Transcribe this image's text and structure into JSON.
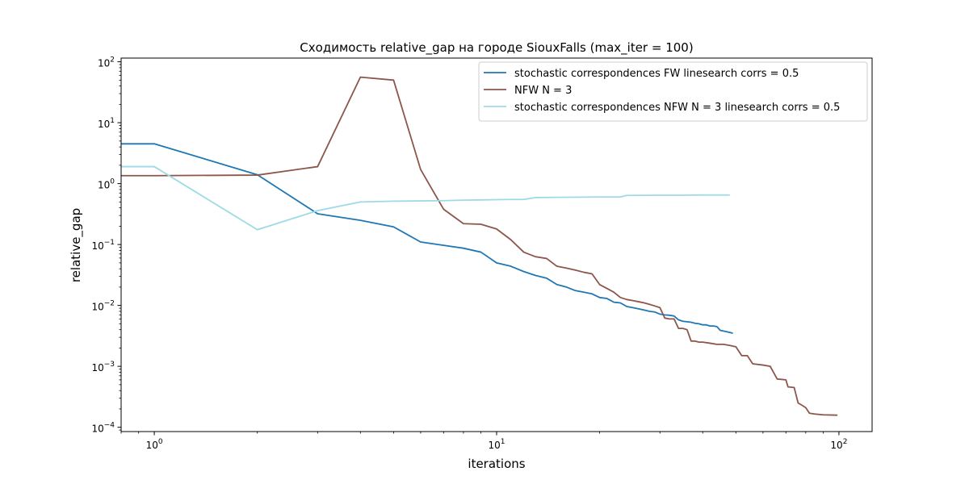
{
  "chart_data": {
    "type": "line",
    "title": "Сходимость relative_gap на городе SiouxFalls  (max_iter = 100)",
    "xlabel": "iterations",
    "ylabel": "relative_gap",
    "xscale": "log",
    "yscale": "log",
    "xlim": [
      0.8,
      125
    ],
    "ylim": [
      8.5e-05,
      115
    ],
    "xticks": [
      {
        "base": "10",
        "exp": "0",
        "value": 1
      },
      {
        "base": "10",
        "exp": "1",
        "value": 10
      },
      {
        "base": "10",
        "exp": "2",
        "value": 100
      }
    ],
    "yticks": [
      {
        "base": "10",
        "exp": "−4",
        "value": 0.0001
      },
      {
        "base": "10",
        "exp": "−3",
        "value": 0.001
      },
      {
        "base": "10",
        "exp": "−2",
        "value": 0.01
      },
      {
        "base": "10",
        "exp": "−1",
        "value": 0.1
      },
      {
        "base": "10",
        "exp": "0",
        "value": 1
      },
      {
        "base": "10",
        "exp": "1",
        "value": 10
      },
      {
        "base": "10",
        "exp": "2",
        "value": 100
      }
    ],
    "grid": false,
    "legend_position": "top-right",
    "series": [
      {
        "name": "stochastic correspondences FW linesearch corrs = 0.5",
        "color": "#1f77b4",
        "points": [
          [
            0,
            4.5
          ],
          [
            1,
            4.5
          ],
          [
            2,
            1.4
          ],
          [
            3,
            0.32
          ],
          [
            4,
            0.25
          ],
          [
            5,
            0.195
          ],
          [
            6,
            0.11
          ],
          [
            7,
            0.097
          ],
          [
            8,
            0.087
          ],
          [
            9,
            0.075
          ],
          [
            10,
            0.05
          ],
          [
            11,
            0.044
          ],
          [
            12,
            0.036
          ],
          [
            13,
            0.031
          ],
          [
            14,
            0.028
          ],
          [
            15,
            0.022
          ],
          [
            16,
            0.02
          ],
          [
            17,
            0.0175
          ],
          [
            18,
            0.0165
          ],
          [
            19,
            0.0155
          ],
          [
            20,
            0.0135
          ],
          [
            21,
            0.013
          ],
          [
            22,
            0.0113
          ],
          [
            23,
            0.011
          ],
          [
            24,
            0.0096
          ],
          [
            25,
            0.0092
          ],
          [
            26,
            0.0088
          ],
          [
            27,
            0.0084
          ],
          [
            28,
            0.008
          ],
          [
            29,
            0.0078
          ],
          [
            30,
            0.0072
          ],
          [
            31,
            0.007
          ],
          [
            32,
            0.0069
          ],
          [
            33,
            0.0067
          ],
          [
            34,
            0.0058
          ],
          [
            35,
            0.0055
          ],
          [
            36,
            0.0054
          ],
          [
            37,
            0.0053
          ],
          [
            38,
            0.0051
          ],
          [
            39,
            0.005
          ],
          [
            40,
            0.0048
          ],
          [
            41,
            0.0048
          ],
          [
            42,
            0.0046
          ],
          [
            43,
            0.0046
          ],
          [
            44,
            0.0045
          ],
          [
            45,
            0.0039
          ],
          [
            46,
            0.0038
          ],
          [
            47,
            0.0037
          ],
          [
            48,
            0.0036
          ],
          [
            49,
            0.0035
          ]
        ]
      },
      {
        "name": "NFW N = 3",
        "color": "#8c564b",
        "points": [
          [
            0,
            1.35
          ],
          [
            1,
            1.35
          ],
          [
            2,
            1.38
          ],
          [
            3,
            1.9
          ],
          [
            4,
            56
          ],
          [
            5,
            50
          ],
          [
            6,
            1.7
          ],
          [
            7,
            0.38
          ],
          [
            8,
            0.22
          ],
          [
            9,
            0.215
          ],
          [
            10,
            0.18
          ],
          [
            11,
            0.12
          ],
          [
            12,
            0.075
          ],
          [
            13,
            0.063
          ],
          [
            14,
            0.059
          ],
          [
            15,
            0.044
          ],
          [
            16,
            0.041
          ],
          [
            17,
            0.038
          ],
          [
            18,
            0.035
          ],
          [
            19,
            0.033
          ],
          [
            20,
            0.022
          ],
          [
            21,
            0.019
          ],
          [
            22,
            0.0165
          ],
          [
            23,
            0.0135
          ],
          [
            24,
            0.0125
          ],
          [
            25,
            0.012
          ],
          [
            26,
            0.0115
          ],
          [
            27,
            0.011
          ],
          [
            28,
            0.0104
          ],
          [
            29,
            0.0098
          ],
          [
            30,
            0.0092
          ],
          [
            31,
            0.0062
          ],
          [
            32,
            0.006
          ],
          [
            33,
            0.006
          ],
          [
            34,
            0.0042
          ],
          [
            35,
            0.0042
          ],
          [
            36,
            0.004
          ],
          [
            37,
            0.0026
          ],
          [
            38,
            0.0026
          ],
          [
            39,
            0.0025
          ],
          [
            40,
            0.0025
          ],
          [
            42,
            0.0024
          ],
          [
            44,
            0.0023
          ],
          [
            46,
            0.0023
          ],
          [
            48,
            0.0022
          ],
          [
            50,
            0.0021
          ],
          [
            52,
            0.0015
          ],
          [
            54,
            0.0015
          ],
          [
            56,
            0.0011
          ],
          [
            60,
            0.00105
          ],
          [
            63,
            0.001
          ],
          [
            66,
            0.00062
          ],
          [
            70,
            0.0006
          ],
          [
            71,
            0.00046
          ],
          [
            74,
            0.00045
          ],
          [
            76,
            0.00025
          ],
          [
            78,
            0.00023
          ],
          [
            80,
            0.00021
          ],
          [
            82,
            0.00017
          ],
          [
            85,
            0.000165
          ],
          [
            90,
            0.00016
          ],
          [
            99,
            0.000158
          ]
        ]
      },
      {
        "name": "stochastic correspondences NFW N = 3 linesearch corrs = 0.5",
        "color": "#9edae5",
        "points": [
          [
            0,
            1.9
          ],
          [
            1,
            1.9
          ],
          [
            2,
            0.175
          ],
          [
            3,
            0.36
          ],
          [
            4,
            0.5
          ],
          [
            5,
            0.515
          ],
          [
            6,
            0.52
          ],
          [
            7,
            0.525
          ],
          [
            8,
            0.535
          ],
          [
            9,
            0.54
          ],
          [
            10,
            0.545
          ],
          [
            11,
            0.55
          ],
          [
            12,
            0.55
          ],
          [
            13,
            0.59
          ],
          [
            15,
            0.595
          ],
          [
            18,
            0.6
          ],
          [
            20,
            0.605
          ],
          [
            23,
            0.605
          ],
          [
            24,
            0.64
          ],
          [
            30,
            0.645
          ],
          [
            35,
            0.645
          ],
          [
            40,
            0.65
          ],
          [
            48,
            0.65
          ]
        ]
      }
    ]
  }
}
